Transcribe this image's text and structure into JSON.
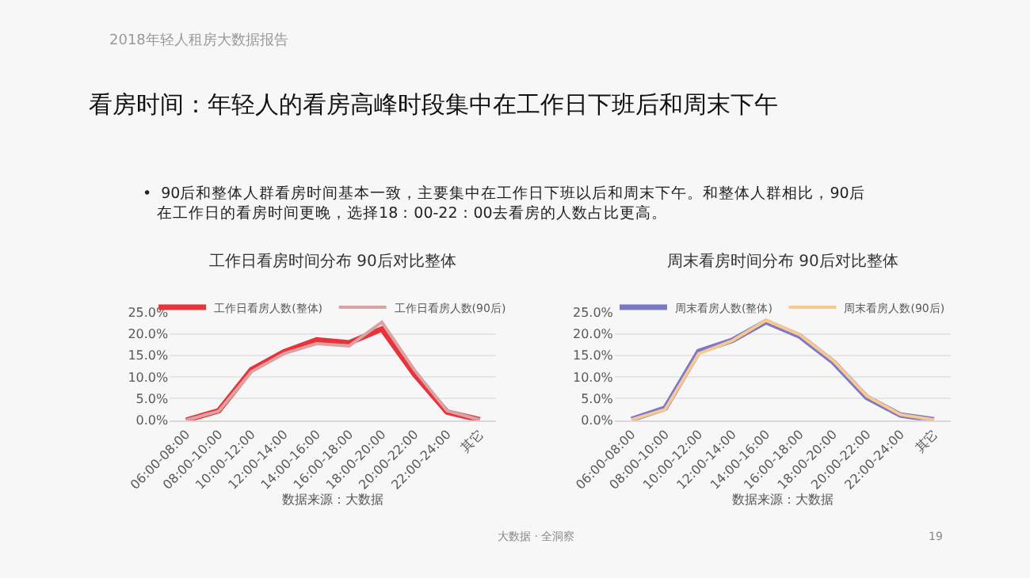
{
  "chart_data": [
    {
      "type": "line",
      "title": "工作日看房时间分布 90后对比整体",
      "categories": [
        "06:00-08:00",
        "08:00-10:00",
        "10:00-12:00",
        "12:00-14:00",
        "14:00-16:00",
        "16:00-18:00",
        "18:00-20:00",
        "20:00-22:00",
        "22:00-24:00",
        "其它"
      ],
      "series": [
        {
          "name": "工作日看房人数(整体)",
          "color": "#e8323c",
          "values": [
            0.0,
            2.2,
            11.7,
            15.8,
            18.6,
            17.9,
            21.1,
            10.6,
            1.9,
            0.1
          ]
        },
        {
          "name": "工作日看房人数(90后)",
          "color": "#d9a3a3",
          "values": [
            0.0,
            2.1,
            11.2,
            15.4,
            17.7,
            17.2,
            22.7,
            11.6,
            2.2,
            0.1
          ]
        }
      ],
      "ylim": [
        0,
        25
      ],
      "yticks": [
        {
          "value": 0,
          "label": "0.0%"
        },
        {
          "value": 5,
          "label": "5.0%"
        },
        {
          "value": 10,
          "label": "10.0%"
        },
        {
          "value": 15,
          "label": "15.0%"
        },
        {
          "value": 20,
          "label": "20.0%"
        },
        {
          "value": 25,
          "label": "25.0%"
        }
      ],
      "grid": "y",
      "legend": "top",
      "marker": "none",
      "line_style": "solid",
      "annotations": [
        "数据来源：大数据",
        "2018年轻人租房大数据报告",
        "看房时间：年轻人的看房高峰时段集中在工作日下班后和周末下午",
        "•  90后和整体人群看房时间基本一致，主要集中在工作日下班以后和周末下午。和整体人群相比，90后在工作日的看房时间更晚，选择18：00-22：00去看房的人数占比更高。",
        "大数据 · 全洞察",
        "19"
      ]
    },
    {
      "type": "line",
      "title": "周末看房时间分布 90后对比整体",
      "categories": [
        "06:00-08:00",
        "08:00-10:00",
        "10:00-12:00",
        "12:00-14:00",
        "14:00-16:00",
        "16:00-18:00",
        "18:00-20:00",
        "20:00-22:00",
        "22:00-24:00",
        "其它"
      ],
      "series": [
        {
          "name": "周末看房人数(整体)",
          "color": "#7b78c8",
          "values": [
            0.2,
            2.8,
            15.9,
            18.5,
            22.8,
            19.5,
            13.5,
            5.3,
            1.2,
            0.1
          ]
        },
        {
          "name": "周末看房人数(90后)",
          "color": "#f8c98e",
          "values": [
            0.1,
            2.5,
            15.4,
            18.4,
            23.1,
            19.8,
            13.8,
            5.6,
            1.3,
            0.1
          ]
        }
      ],
      "ylim": [
        0,
        25
      ],
      "yticks": [
        {
          "value": 0,
          "label": "0.0%"
        },
        {
          "value": 5,
          "label": "5.0%"
        },
        {
          "value": 10,
          "label": "10.0%"
        },
        {
          "value": 15,
          "label": "15.0%"
        },
        {
          "value": 20,
          "label": "20.0%"
        },
        {
          "value": 25,
          "label": "25.0%"
        }
      ],
      "grid": "y",
      "legend": "top",
      "marker": "none",
      "line_style": "solid",
      "annotations": [
        "数据来源：大数据"
      ]
    }
  ]
}
